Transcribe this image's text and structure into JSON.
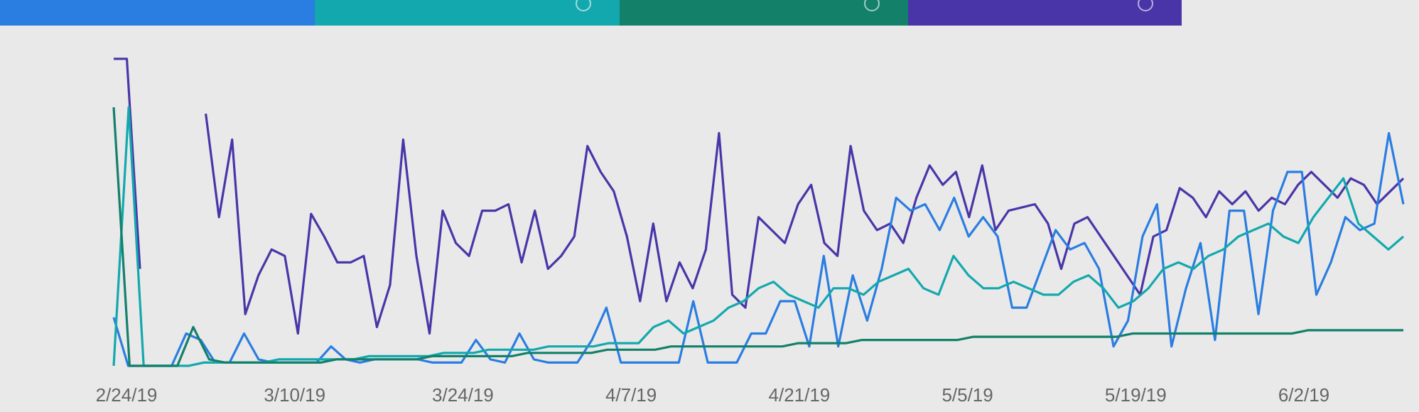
{
  "tabs": [
    {
      "color": "#2a7de1"
    },
    {
      "color": "#13a8ad"
    },
    {
      "color": "#13806a"
    },
    {
      "color": "#4a35a8"
    }
  ],
  "chart_data": {
    "type": "line",
    "x_tick_labels": [
      "2/24/19",
      "3/10/19",
      "3/24/19",
      "4/7/19",
      "4/21/19",
      "5/5/19",
      "5/19/19",
      "6/2/19"
    ],
    "x_range": [
      "2/24/19",
      "6/12/19"
    ],
    "ylim": [
      0,
      100
    ],
    "grid": false,
    "series": [
      {
        "color": "#4a35a8",
        "values": [
          95,
          95,
          30,
          null,
          null,
          null,
          null,
          78,
          46,
          70,
          16,
          28,
          36,
          34,
          10,
          47,
          40,
          32,
          32,
          34,
          12,
          25,
          70,
          34,
          10,
          48,
          38,
          34,
          48,
          48,
          50,
          32,
          48,
          30,
          34,
          40,
          68,
          60,
          54,
          40,
          20,
          44,
          20,
          32,
          24,
          36,
          72,
          22,
          18,
          46,
          42,
          38,
          50,
          56,
          38,
          34,
          68,
          48,
          42,
          44,
          38,
          52,
          62,
          56,
          60,
          46,
          62,
          42,
          48,
          49,
          50,
          44,
          30,
          44,
          46,
          40,
          34,
          28,
          22,
          40,
          42,
          55,
          52,
          46,
          54,
          50,
          54,
          48,
          52,
          50,
          56,
          60,
          56,
          52,
          58,
          56,
          50,
          54,
          58
        ]
      },
      {
        "color": "#2a7de1",
        "values": [
          15,
          0,
          0,
          0,
          0,
          10,
          8,
          1,
          1,
          10,
          2,
          1,
          1,
          1,
          1,
          6,
          2,
          1,
          2,
          2,
          2,
          2,
          1,
          1,
          1,
          8,
          2,
          1,
          10,
          2,
          1,
          1,
          1,
          8,
          18,
          1,
          1,
          1,
          1,
          1,
          20,
          1,
          1,
          1,
          10,
          10,
          20,
          20,
          6,
          34,
          6,
          28,
          14,
          30,
          52,
          48,
          50,
          42,
          52,
          40,
          46,
          40,
          18,
          18,
          30,
          42,
          36,
          38,
          30,
          6,
          14,
          40,
          50,
          6,
          24,
          38,
          8,
          48,
          48,
          16,
          48,
          60,
          60,
          22,
          32,
          46,
          42,
          44,
          72,
          50
        ]
      },
      {
        "color": "#13a8ad",
        "values": [
          0,
          80,
          0,
          0,
          0,
          0,
          1,
          1,
          1,
          1,
          1,
          2,
          2,
          2,
          2,
          2,
          2,
          3,
          3,
          3,
          3,
          3,
          4,
          4,
          4,
          5,
          5,
          5,
          5,
          6,
          6,
          6,
          6,
          7,
          7,
          7,
          12,
          14,
          10,
          12,
          14,
          18,
          20,
          24,
          26,
          22,
          20,
          18,
          24,
          24,
          22,
          26,
          28,
          30,
          24,
          22,
          34,
          28,
          24,
          24,
          26,
          24,
          22,
          22,
          26,
          28,
          24,
          18,
          20,
          24,
          30,
          32,
          30,
          34,
          36,
          40,
          42,
          44,
          40,
          38,
          46,
          52,
          58,
          44,
          40,
          36,
          40
        ]
      },
      {
        "color": "#13806a",
        "values": [
          80,
          0,
          0,
          0,
          0,
          12,
          2,
          1,
          1,
          1,
          1,
          1,
          1,
          1,
          2,
          2,
          2,
          2,
          2,
          2,
          3,
          3,
          3,
          3,
          3,
          3,
          4,
          4,
          4,
          4,
          4,
          5,
          5,
          5,
          5,
          6,
          6,
          6,
          6,
          6,
          6,
          6,
          6,
          7,
          7,
          7,
          7,
          8,
          8,
          8,
          8,
          8,
          8,
          8,
          9,
          9,
          9,
          9,
          9,
          9,
          9,
          9,
          9,
          9,
          10,
          10,
          10,
          10,
          10,
          10,
          10,
          10,
          10,
          10,
          10,
          11,
          11,
          11,
          11,
          11,
          11,
          11
        ]
      }
    ]
  }
}
